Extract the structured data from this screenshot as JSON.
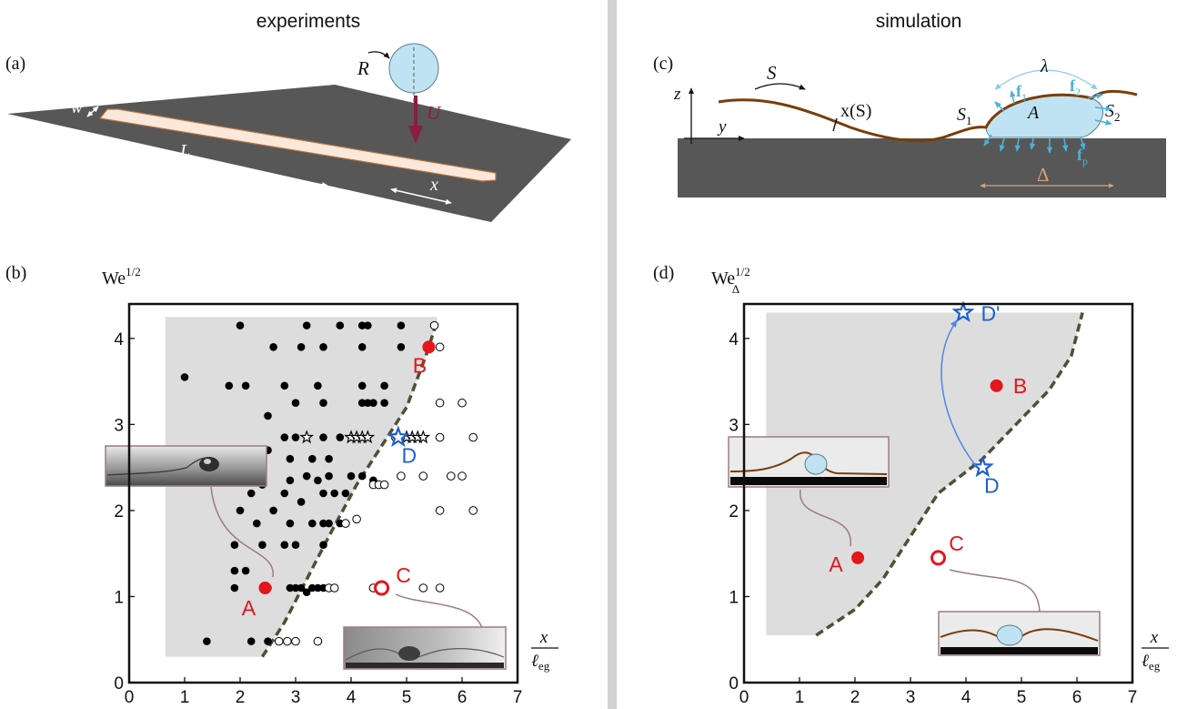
{
  "headers": {
    "left": "experiments",
    "right": "simulation"
  },
  "panel_labels": {
    "a": "(a)",
    "b": "(b)",
    "c": "(c)",
    "d": "(d)"
  },
  "panel_a": {
    "R": "R",
    "U": "U",
    "w": "w",
    "L": "L",
    "x": "x"
  },
  "panel_c": {
    "z": "z",
    "y": "y",
    "S": "S",
    "xS": "x(S)",
    "S1": "S",
    "S1_sub": "1",
    "S2": "S",
    "S2_sub": "2",
    "A": "A",
    "lambda": "λ",
    "f1": "f",
    "f1_sub": "1",
    "f2": "f",
    "f2_sub": "2",
    "fp": "f",
    "fp_sub": "p",
    "Delta": "Δ"
  },
  "colors": {
    "substrate": "#575757",
    "strip": "#fbe8da",
    "droplet": "#bfe3f2",
    "sheet": "#7a3d08",
    "arrow_u": "#8b1e3f",
    "force": "#4bb0d8",
    "region": "#dddddd",
    "boundary": "#4e4f35",
    "red": "#e3161b",
    "blue": "#1f5fd0"
  },
  "chart_data": [
    {
      "type": "scatter",
      "panel": "b",
      "ylabel": "We",
      "ylabel_sup": "1/2",
      "xlabel": "x",
      "xlabel_den": "ℓ",
      "xlabel_den_sub": "eg",
      "xlim": [
        0,
        7
      ],
      "ylim": [
        0,
        4.4
      ],
      "xticks": [
        "0",
        "1",
        "2",
        "3",
        "4",
        "5",
        "6",
        "7"
      ],
      "yticks": [
        "0",
        "1",
        "2",
        "3",
        "4"
      ],
      "shaded_region": [
        [
          0.65,
          0.3
        ],
        [
          2.4,
          0.3
        ],
        [
          2.8,
          0.7
        ],
        [
          3.2,
          1.2
        ],
        [
          3.6,
          1.7
        ],
        [
          4.1,
          2.3
        ],
        [
          4.6,
          2.8
        ],
        [
          5.0,
          3.2
        ],
        [
          5.35,
          3.8
        ],
        [
          5.55,
          4.2
        ],
        [
          5.55,
          4.25
        ],
        [
          0.65,
          4.25
        ]
      ],
      "boundary": [
        [
          2.4,
          0.3
        ],
        [
          2.8,
          0.7
        ],
        [
          3.2,
          1.2
        ],
        [
          3.6,
          1.7
        ],
        [
          4.1,
          2.3
        ],
        [
          4.6,
          2.8
        ],
        [
          5.0,
          3.2
        ],
        [
          5.35,
          3.8
        ],
        [
          5.55,
          4.2
        ]
      ],
      "series": [
        {
          "name": "",
          "marker": "filled-circle",
          "points": [
            [
              1.4,
              0.48
            ],
            [
              2.2,
              0.48
            ],
            [
              2.5,
              0.48
            ],
            [
              1.9,
              1.1
            ],
            [
              2.5,
              1.1
            ],
            [
              1.9,
              1.3
            ],
            [
              2.1,
              1.3
            ],
            [
              2.9,
              1.1
            ],
            [
              3.0,
              1.1
            ],
            [
              3.1,
              1.1
            ],
            [
              3.3,
              1.1
            ],
            [
              3.4,
              1.1
            ],
            [
              3.5,
              1.1
            ],
            [
              3.2,
              1.05
            ],
            [
              1.9,
              1.6
            ],
            [
              2.4,
              1.6
            ],
            [
              2.8,
              1.6
            ],
            [
              3.0,
              1.6
            ],
            [
              3.5,
              1.6
            ],
            [
              2.3,
              1.85
            ],
            [
              2.9,
              1.85
            ],
            [
              3.3,
              1.85
            ],
            [
              3.5,
              1.85
            ],
            [
              3.6,
              1.85
            ],
            [
              3.8,
              1.85
            ],
            [
              2.0,
              2.0
            ],
            [
              2.2,
              2.2
            ],
            [
              2.6,
              2.0
            ],
            [
              2.8,
              2.2
            ],
            [
              3.1,
              2.1
            ],
            [
              3.5,
              2.2
            ],
            [
              3.7,
              2.2
            ],
            [
              3.9,
              2.2
            ],
            [
              2.4,
              2.3
            ],
            [
              2.9,
              2.35
            ],
            [
              3.2,
              2.4
            ],
            [
              3.4,
              2.35
            ],
            [
              4.0,
              2.4
            ],
            [
              4.2,
              2.4
            ],
            [
              4.4,
              2.35
            ],
            [
              3.6,
              2.4
            ],
            [
              2.3,
              2.6
            ],
            [
              2.5,
              2.7
            ],
            [
              2.9,
              2.6
            ],
            [
              3.3,
              2.6
            ],
            [
              3.6,
              2.6
            ],
            [
              2.8,
              2.85
            ],
            [
              3.0,
              2.85
            ],
            [
              3.5,
              2.85
            ],
            [
              3.8,
              2.85
            ],
            [
              2.5,
              3.1
            ],
            [
              3.0,
              3.25
            ],
            [
              3.5,
              3.25
            ],
            [
              4.2,
              3.25
            ],
            [
              4.3,
              3.25
            ],
            [
              4.4,
              3.25
            ],
            [
              4.6,
              3.25
            ],
            [
              1.0,
              3.55
            ],
            [
              1.8,
              3.45
            ],
            [
              2.1,
              3.45
            ],
            [
              2.8,
              3.45
            ],
            [
              3.4,
              3.45
            ],
            [
              4.2,
              3.45
            ],
            [
              4.6,
              3.45
            ],
            [
              2.6,
              3.9
            ],
            [
              3.1,
              3.9
            ],
            [
              3.5,
              3.9
            ],
            [
              4.2,
              3.9
            ],
            [
              4.9,
              3.9
            ],
            [
              2.0,
              4.15
            ],
            [
              3.2,
              4.15
            ],
            [
              3.8,
              4.15
            ],
            [
              4.2,
              4.15
            ],
            [
              4.3,
              4.15
            ],
            [
              4.9,
              4.15
            ]
          ]
        },
        {
          "name": "",
          "marker": "open-circle",
          "points": [
            [
              2.7,
              0.48
            ],
            [
              2.85,
              0.48
            ],
            [
              3.0,
              0.48
            ],
            [
              3.4,
              0.48
            ],
            [
              3.6,
              1.1
            ],
            [
              3.7,
              1.1
            ],
            [
              4.4,
              1.1
            ],
            [
              5.3,
              1.1
            ],
            [
              5.6,
              1.1
            ],
            [
              3.9,
              1.85
            ],
            [
              4.1,
              1.9
            ],
            [
              4.4,
              2.3
            ],
            [
              4.5,
              2.3
            ],
            [
              4.6,
              2.3
            ],
            [
              5.6,
              2.0
            ],
            [
              6.2,
              2.0
            ],
            [
              4.9,
              2.4
            ],
            [
              5.3,
              2.4
            ],
            [
              5.8,
              2.4
            ],
            [
              6.0,
              2.4
            ],
            [
              4.8,
              2.85
            ],
            [
              5.6,
              2.85
            ],
            [
              6.2,
              2.85
            ],
            [
              5.6,
              3.25
            ],
            [
              6.0,
              3.25
            ],
            [
              5.6,
              3.9
            ],
            [
              5.5,
              4.15
            ]
          ]
        },
        {
          "name": "",
          "marker": "open-star",
          "points": [
            [
              3.2,
              2.85
            ],
            [
              4.0,
              2.85
            ],
            [
              4.1,
              2.85
            ],
            [
              4.2,
              2.85
            ],
            [
              4.3,
              2.85
            ],
            [
              5.0,
              2.85
            ],
            [
              5.1,
              2.85
            ],
            [
              5.2,
              2.85
            ],
            [
              5.3,
              2.85
            ]
          ]
        }
      ],
      "highlights": [
        {
          "label": "A",
          "x": 2.45,
          "y": 1.1,
          "marker": "filled-circle",
          "color": "red"
        },
        {
          "label": "B",
          "x": 5.4,
          "y": 3.9,
          "marker": "filled-circle",
          "color": "red"
        },
        {
          "label": "C",
          "x": 4.55,
          "y": 1.1,
          "marker": "open-circle",
          "color": "red"
        },
        {
          "label": "D",
          "x": 4.85,
          "y": 2.85,
          "marker": "open-star",
          "color": "blue"
        }
      ]
    },
    {
      "type": "scatter",
      "panel": "d",
      "ylabel": "We",
      "ylabel_sup": "1/2",
      "ylabel_sub": "Δ",
      "xlabel": "x",
      "xlabel_den": "ℓ",
      "xlabel_den_sub": "eg",
      "xlim": [
        0,
        7
      ],
      "ylim": [
        0,
        4.4
      ],
      "xticks": [
        "0",
        "1",
        "2",
        "3",
        "4",
        "5",
        "6",
        "7"
      ],
      "yticks": [
        "0",
        "1",
        "2",
        "3",
        "4"
      ],
      "shaded_region": [
        [
          0.4,
          0.55
        ],
        [
          1.3,
          0.55
        ],
        [
          2.0,
          0.85
        ],
        [
          2.5,
          1.2
        ],
        [
          3.0,
          1.7
        ],
        [
          3.5,
          2.2
        ],
        [
          4.3,
          2.6
        ],
        [
          4.9,
          3.0
        ],
        [
          5.5,
          3.4
        ],
        [
          5.9,
          3.8
        ],
        [
          6.1,
          4.3
        ],
        [
          0.4,
          4.3
        ]
      ],
      "boundary": [
        [
          1.3,
          0.55
        ],
        [
          2.0,
          0.85
        ],
        [
          2.5,
          1.2
        ],
        [
          3.0,
          1.7
        ],
        [
          3.5,
          2.2
        ],
        [
          4.3,
          2.6
        ],
        [
          4.9,
          3.0
        ],
        [
          5.5,
          3.4
        ],
        [
          5.9,
          3.8
        ],
        [
          6.1,
          4.3
        ]
      ],
      "series": [],
      "highlights": [
        {
          "label": "A",
          "x": 2.05,
          "y": 1.45,
          "marker": "filled-circle",
          "color": "red"
        },
        {
          "label": "B",
          "x": 4.55,
          "y": 3.45,
          "marker": "filled-circle",
          "color": "red"
        },
        {
          "label": "C",
          "x": 3.5,
          "y": 1.45,
          "marker": "open-circle",
          "color": "red"
        },
        {
          "label": "D",
          "x": 4.3,
          "y": 2.5,
          "marker": "open-star",
          "color": "blue"
        },
        {
          "label": "D'",
          "x": 3.95,
          "y": 4.3,
          "marker": "open-star",
          "color": "blue"
        }
      ]
    }
  ]
}
